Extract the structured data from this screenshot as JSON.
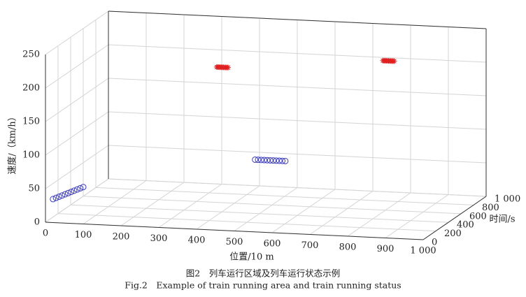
{
  "chart_data": {
    "type": "scatter3d",
    "caption_cn": "图2　列车运行区域及列车运行状态示例",
    "caption_en": "Fig.2　Example of train running area and train running status",
    "xlabel": "位置/10 m",
    "ylabel": "时间/s",
    "zlabel": "速度/（km/h）",
    "xlim": [
      0,
      1000
    ],
    "ylim": [
      0,
      1000
    ],
    "zlim": [
      0,
      250
    ],
    "xticks": [
      0,
      100,
      200,
      300,
      400,
      500,
      600,
      700,
      800,
      900,
      {
        "value": 1000,
        "label": "1 000"
      }
    ],
    "yticks": [
      0,
      200,
      400,
      600,
      800,
      {
        "value": 1000,
        "label": "1 000"
      }
    ],
    "zticks": [
      0,
      50,
      100,
      150,
      200,
      250
    ],
    "grid": true,
    "series": [
      {
        "color": "#3a3ab8",
        "marker": "circle",
        "x": [
          20,
          28,
          36,
          44,
          52,
          60,
          68,
          76,
          84,
          92,
          100,
          500,
          508,
          516,
          524,
          532,
          540,
          548,
          556,
          564,
          572,
          580
        ],
        "y": [
          0,
          0,
          0,
          0,
          0,
          0,
          0,
          0,
          0,
          0,
          0,
          330,
          330,
          330,
          330,
          330,
          330,
          330,
          330,
          330,
          330,
          330
        ],
        "values": [
          35,
          37,
          39,
          41,
          43,
          45,
          47,
          49,
          51,
          53,
          55,
          85,
          85,
          85,
          85,
          85,
          85,
          85,
          85,
          85,
          85,
          85
        ]
      },
      {
        "color": "#e02020",
        "marker": "asterisk",
        "x": [
          320,
          323,
          326,
          329,
          332,
          335,
          338,
          341,
          344,
          347,
          350,
          760,
          763,
          766,
          769,
          772,
          775,
          778,
          781,
          784,
          787,
          790
        ],
        "y": [
          800,
          800,
          800,
          800,
          800,
          800,
          800,
          800,
          800,
          800,
          800,
          800,
          800,
          800,
          800,
          800,
          800,
          800,
          800,
          800,
          800,
          800
        ],
        "values": [
          188,
          188,
          188,
          188,
          188,
          188,
          188,
          188,
          188,
          188,
          188,
          209,
          209,
          209,
          209,
          209,
          209,
          209,
          209,
          209,
          209,
          209
        ]
      }
    ]
  }
}
